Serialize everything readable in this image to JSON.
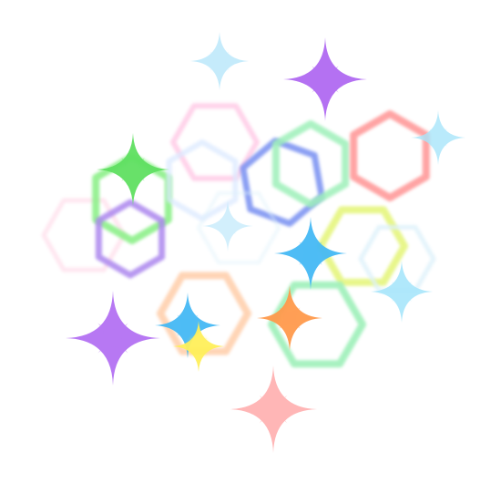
{
  "palette": {
    "background": "#ffffff",
    "hex_pink": "#ffc4e3",
    "hex_pale_pink": "#ffe0ec",
    "hex_green": "#8df08a",
    "hex_violet": "#ab86ee",
    "hex_pale_blue": "#dbe9ff",
    "hex_blue": "#7f95f2",
    "hex_mint": "#9ef0b9",
    "hex_red": "#ff9a9a",
    "hex_lime": "#e5f57e",
    "hex_peach": "#ffcda9",
    "hex_ice": "#ddf1fa",
    "star_sky": "#bfe9fb",
    "star_purple": "#b06af2",
    "star_green": "#60e062",
    "star_blue": "#45b9f5",
    "star_cyan": "#a8e6fb",
    "star_yellow": "#fff05a",
    "star_orange": "#ff9a4c",
    "star_rose": "#ffaaaa"
  },
  "hexagons": [
    {
      "name": "hexagon-pink-top",
      "color": "palette.hex_pink",
      "opacity": 0.75
    },
    {
      "name": "hexagon-pale-pink-left",
      "color": "palette.hex_pale_pink",
      "opacity": 0.8
    },
    {
      "name": "hexagon-green-left",
      "color": "palette.hex_green",
      "opacity": 0.9
    },
    {
      "name": "hexagon-violet-left",
      "color": "palette.hex_violet",
      "opacity": 0.85
    },
    {
      "name": "hexagon-pale-blue-center",
      "color": "palette.hex_pale_blue",
      "opacity": 0.75
    },
    {
      "name": "hexagon-blue-center",
      "color": "palette.hex_blue",
      "opacity": 0.9
    },
    {
      "name": "hexagon-mint-center",
      "color": "palette.hex_mint",
      "opacity": 0.85
    },
    {
      "name": "hexagon-red-right",
      "color": "palette.hex_red",
      "opacity": 0.9
    },
    {
      "name": "hexagon-lime-right",
      "color": "palette.hex_lime",
      "opacity": 0.9
    },
    {
      "name": "hexagon-ice-right",
      "color": "palette.hex_ice",
      "opacity": 0.8
    },
    {
      "name": "hexagon-peach-bottom",
      "color": "palette.hex_peach",
      "opacity": 0.85
    },
    {
      "name": "hexagon-mint-bottom",
      "color": "palette.hex_mint",
      "opacity": 0.9
    },
    {
      "name": "hexagon-faint-center",
      "color": "palette.hex_ice",
      "opacity": 0.45
    }
  ],
  "sparkles": [
    {
      "name": "sparkle-sky-top",
      "color": "palette.star_sky",
      "opacity": 0.9
    },
    {
      "name": "sparkle-purple-top",
      "color": "palette.star_purple",
      "opacity": 0.95
    },
    {
      "name": "sparkle-cyan-right",
      "color": "palette.star_cyan",
      "opacity": 0.8
    },
    {
      "name": "sparkle-green-left",
      "color": "palette.star_green",
      "opacity": 0.95
    },
    {
      "name": "sparkle-blue-center",
      "color": "palette.star_blue",
      "opacity": 0.95
    },
    {
      "name": "sparkle-cyan-lower-right",
      "color": "palette.star_cyan",
      "opacity": 0.9
    },
    {
      "name": "sparkle-blue-lower-left",
      "color": "palette.star_blue",
      "opacity": 0.95
    },
    {
      "name": "sparkle-orange-bottom",
      "color": "palette.star_orange",
      "opacity": 0.95
    },
    {
      "name": "sparkle-yellow-bottom",
      "color": "palette.star_yellow",
      "opacity": 0.95
    },
    {
      "name": "sparkle-purple-bottom-left",
      "color": "palette.star_purple",
      "opacity": 0.9
    },
    {
      "name": "sparkle-rose-bottom",
      "color": "palette.star_rose",
      "opacity": 0.85
    },
    {
      "name": "sparkle-sky-center",
      "color": "palette.star_sky",
      "opacity": 0.7
    }
  ]
}
